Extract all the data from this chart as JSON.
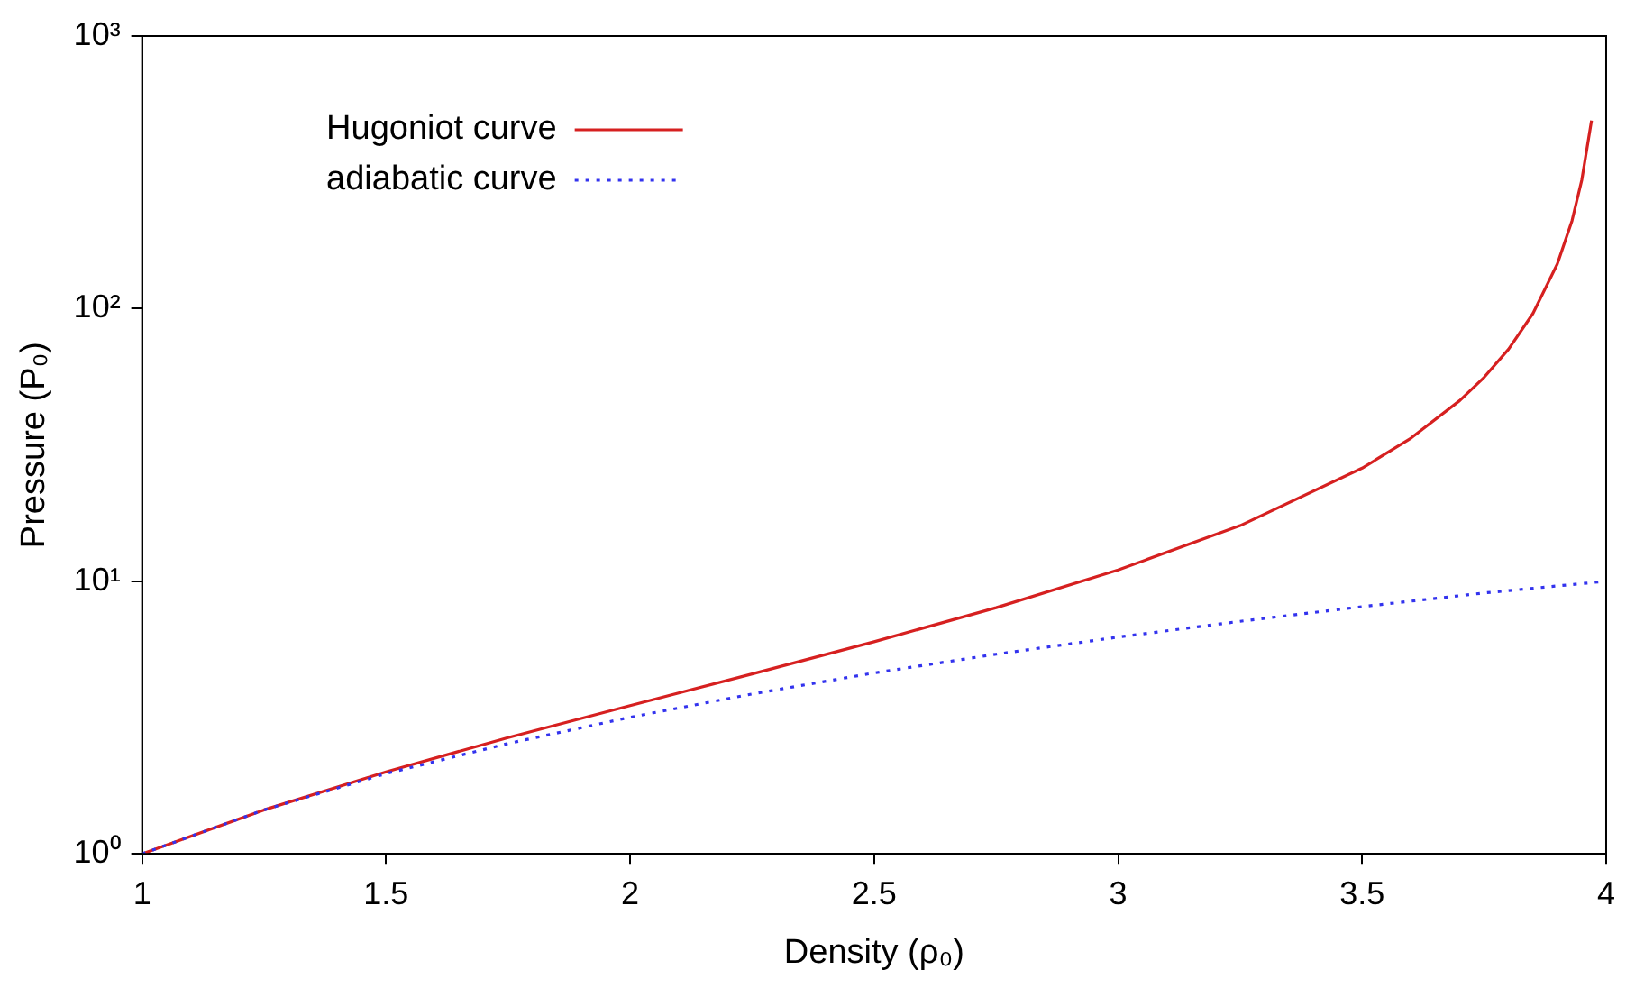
{
  "chart_data": {
    "type": "line",
    "xlabel": "Density (ρ₀)",
    "ylabel": "Pressure (P₀)",
    "log": "y",
    "xlim": [
      1,
      4
    ],
    "xticks": [
      1,
      1.5,
      2,
      2.5,
      3,
      3.5,
      4
    ],
    "ylim": [
      1,
      1000
    ],
    "yticks": [
      {
        "value": 1,
        "label": "10⁰"
      },
      {
        "value": 10,
        "label": "10¹"
      },
      {
        "value": 100,
        "label": "10²"
      },
      {
        "value": 1000,
        "label": "10³"
      }
    ],
    "grid": false,
    "legend": "top left",
    "marker": "none",
    "series": [
      {
        "name": "Hugoniot curve",
        "color": "#d62020",
        "line_style": "solid",
        "x": [
          1,
          1.25,
          1.5,
          1.75,
          2,
          2.25,
          2.5,
          2.75,
          3,
          3.25,
          3.5,
          3.6,
          3.7,
          3.75,
          3.8,
          3.85,
          3.9,
          3.93,
          3.95,
          3.97
        ],
        "values": [
          1,
          1.45,
          2,
          2.67,
          3.5,
          4.57,
          6,
          8,
          11,
          16,
          26,
          33.5,
          46,
          56,
          71,
          96,
          146,
          210,
          296,
          490
        ]
      },
      {
        "name": "adiabatic curve",
        "color": "#3333ee",
        "line_style": "dotted",
        "x": [
          1,
          1.25,
          1.5,
          1.75,
          2,
          2.25,
          2.5,
          2.75,
          3,
          3.25,
          3.5,
          3.75,
          4
        ],
        "values": [
          1,
          1.45,
          1.97,
          2.54,
          3.17,
          3.86,
          4.61,
          5.4,
          6.24,
          7.13,
          8.07,
          9.06,
          10
        ]
      }
    ]
  }
}
